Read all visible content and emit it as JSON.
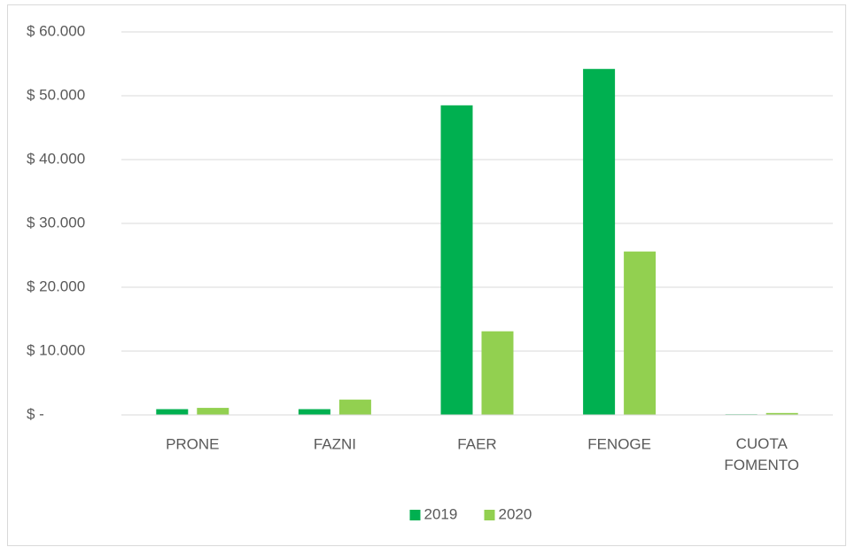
{
  "chart_data": {
    "type": "bar",
    "categories": [
      "PRONE",
      "FAZNI",
      "FAER",
      "FENOGE",
      "CUOTA FOMENTO"
    ],
    "series": [
      {
        "name": "2019",
        "color": "#00b050",
        "values": [
          900,
          900,
          48500,
          54200,
          100
        ]
      },
      {
        "name": "2020",
        "color": "#92d050",
        "values": [
          1100,
          2400,
          13100,
          25600,
          300
        ]
      }
    ],
    "ylim": [
      0,
      60000
    ],
    "yticks": [
      {
        "value": 0,
        "label": "$ -"
      },
      {
        "value": 10000,
        "label": "$ 10.000"
      },
      {
        "value": 20000,
        "label": "$ 20.000"
      },
      {
        "value": 30000,
        "label": "$ 30.000"
      },
      {
        "value": 40000,
        "label": "$ 40.000"
      },
      {
        "value": 50000,
        "label": "$ 50.000"
      },
      {
        "value": 60000,
        "label": "$ 60.000"
      }
    ],
    "grid": true,
    "legend": "bottom"
  }
}
